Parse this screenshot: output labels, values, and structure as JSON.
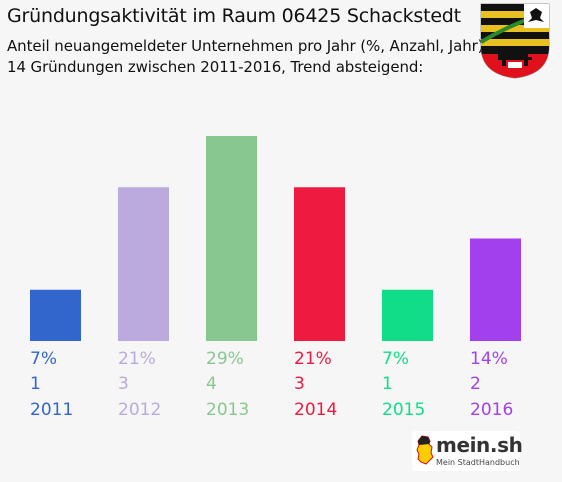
{
  "header": {
    "title": "Gründungsaktivität im Raum 06425 Schackstedt",
    "subtitle_line1": "Anteil neuangemeldeter Unternehmen pro Jahr (%, Anzahl, Jahr)",
    "subtitle_line2": "14 Gründungen zwischen 2011-2016, Trend absteigend:"
  },
  "logo": {
    "main": "mein.sh",
    "sub": "Mein StadtHandbuch"
  },
  "chart_data": {
    "type": "bar",
    "title": "Gründungsaktivität im Raum 06425 Schackstedt",
    "categories": [
      "2011",
      "2012",
      "2013",
      "2014",
      "2015",
      "2016"
    ],
    "percent_labels": [
      "7%",
      "21%",
      "29%",
      "21%",
      "7%",
      "14%"
    ],
    "counts": [
      1,
      3,
      4,
      3,
      1,
      2
    ],
    "colors": [
      "#3366cc",
      "#bbaadd",
      "#88c890",
      "#ee1a3f",
      "#11dd88",
      "#a340ee"
    ],
    "ylim": [
      0,
      4
    ],
    "grid": false,
    "legend": "none"
  }
}
